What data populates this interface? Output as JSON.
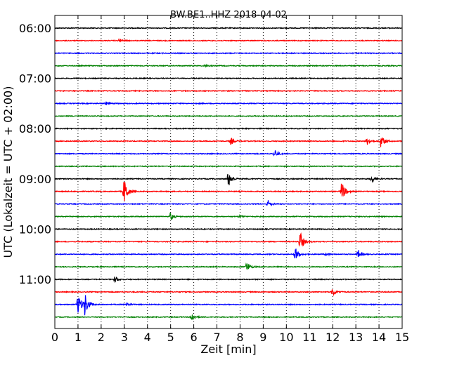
{
  "chart_data": {
    "type": "line",
    "title": "BW.BE1..HHZ 2018-04-02",
    "xlabel": "Zeit  [min]",
    "ylabel": "UTC (Lokalzeit = UTC + 02:00)",
    "xlim": [
      0,
      15
    ],
    "x_ticks": [
      "0",
      "1",
      "2",
      "3",
      "4",
      "5",
      "6",
      "7",
      "8",
      "9",
      "10",
      "11",
      "12",
      "13",
      "14",
      "15"
    ],
    "grid": "vertical-dotted",
    "trace_interval_min": 15,
    "first_trace": "06:00",
    "y_tick_labels": [
      "06:00",
      "07:00",
      "08:00",
      "09:00",
      "10:00",
      "11:00"
    ],
    "colors": [
      "#000000",
      "#ff0000",
      "#0000ff",
      "#008000"
    ],
    "traces": [
      {
        "time": "06:00",
        "color": "#000000",
        "events": []
      },
      {
        "time": "06:15",
        "color": "#ff0000",
        "events": [
          {
            "x": 2.8,
            "amp": 0.15
          }
        ]
      },
      {
        "time": "06:30",
        "color": "#0000ff",
        "events": []
      },
      {
        "time": "06:45",
        "color": "#008000",
        "events": [
          {
            "x": 6.5,
            "amp": 0.1
          }
        ]
      },
      {
        "time": "07:00",
        "color": "#000000",
        "events": []
      },
      {
        "time": "07:15",
        "color": "#ff0000",
        "events": []
      },
      {
        "time": "07:30",
        "color": "#0000ff",
        "events": [
          {
            "x": 2.2,
            "amp": 0.15
          }
        ]
      },
      {
        "time": "07:45",
        "color": "#008000",
        "events": []
      },
      {
        "time": "08:00",
        "color": "#000000",
        "events": []
      },
      {
        "time": "08:15",
        "color": "#ff0000",
        "events": [
          {
            "x": 7.6,
            "amp": 0.3
          },
          {
            "x": 13.5,
            "amp": 0.3
          },
          {
            "x": 14.1,
            "amp": 0.65
          }
        ]
      },
      {
        "time": "08:30",
        "color": "#0000ff",
        "events": [
          {
            "x": 9.5,
            "amp": 0.35
          }
        ]
      },
      {
        "time": "08:45",
        "color": "#008000",
        "events": []
      },
      {
        "time": "09:00",
        "color": "#000000",
        "events": [
          {
            "x": 7.5,
            "amp": 0.7
          },
          {
            "x": 13.7,
            "amp": 0.35
          }
        ]
      },
      {
        "time": "09:15",
        "color": "#ff0000",
        "events": [
          {
            "x": 3.0,
            "amp": 1.2
          },
          {
            "x": 12.4,
            "amp": 0.9
          }
        ]
      },
      {
        "time": "09:30",
        "color": "#0000ff",
        "events": [
          {
            "x": 9.2,
            "amp": 0.35
          }
        ]
      },
      {
        "time": "09:45",
        "color": "#008000",
        "events": [
          {
            "x": 5.0,
            "amp": 0.35
          },
          {
            "x": 8.0,
            "amp": 0.1
          }
        ]
      },
      {
        "time": "10:00",
        "color": "#000000",
        "events": []
      },
      {
        "time": "10:15",
        "color": "#ff0000",
        "events": [
          {
            "x": 10.6,
            "amp": 0.9
          }
        ]
      },
      {
        "time": "10:30",
        "color": "#0000ff",
        "events": [
          {
            "x": 10.4,
            "amp": 0.6
          },
          {
            "x": 11.7,
            "amp": 0.1
          },
          {
            "x": 13.1,
            "amp": 0.4
          }
        ]
      },
      {
        "time": "10:45",
        "color": "#008000",
        "events": [
          {
            "x": 8.3,
            "amp": 0.45
          }
        ]
      },
      {
        "time": "11:00",
        "color": "#000000",
        "events": [
          {
            "x": 2.6,
            "amp": 0.25
          }
        ]
      },
      {
        "time": "11:15",
        "color": "#ff0000",
        "events": [
          {
            "x": 12.0,
            "amp": 0.4
          }
        ]
      },
      {
        "time": "11:30",
        "color": "#0000ff",
        "events": [
          {
            "x": 1.0,
            "amp": 1.0
          },
          {
            "x": 1.3,
            "amp": 1.0
          },
          {
            "x": 3.1,
            "amp": 0.15
          }
        ]
      },
      {
        "time": "11:45",
        "color": "#008000",
        "events": [
          {
            "x": 5.9,
            "amp": 0.4
          }
        ]
      }
    ]
  }
}
